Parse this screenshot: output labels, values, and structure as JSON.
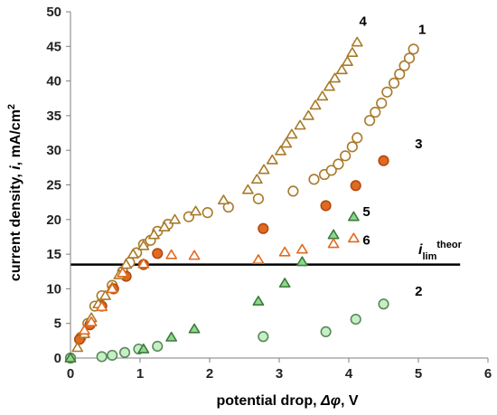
{
  "chart_data": {
    "type": "scatter",
    "xlabel_prefix": "potential drop, ",
    "xlabel_symbol": "Δφ",
    "xlabel_suffix": ", V",
    "ylabel_prefix": "current density, ",
    "ylabel_symbol": "i",
    "ylabel_suffix": ", mA/cm",
    "ylabel_sup": "2",
    "xlim": [
      0,
      6
    ],
    "ylim": [
      0,
      50
    ],
    "xticks": [
      "0",
      "1",
      "2",
      "3",
      "4",
      "5",
      "6"
    ],
    "yticks": [
      "0",
      "5",
      "10",
      "15",
      "20",
      "25",
      "30",
      "35",
      "40",
      "45",
      "50"
    ],
    "grid": false,
    "limit_line": {
      "y": 13.5,
      "x_range": [
        0,
        5.6
      ],
      "label_i": "i",
      "label_sub": "lim",
      "label_sup": "theor"
    },
    "series": [
      {
        "label": "1",
        "marker": "circle",
        "fill": "#ffffff",
        "stroke": "#a87a2a",
        "label_at": [
          5.0,
          46.8
        ],
        "points": [
          [
            0.0,
            0.0
          ],
          [
            0.15,
            3.0
          ],
          [
            0.25,
            5.0
          ],
          [
            0.35,
            7.5
          ],
          [
            0.45,
            9.0
          ],
          [
            0.6,
            10.5
          ],
          [
            0.75,
            12.5
          ],
          [
            0.85,
            13.8
          ],
          [
            0.95,
            15.2
          ],
          [
            1.05,
            16.4
          ],
          [
            1.15,
            17.0
          ],
          [
            1.25,
            18.3
          ],
          [
            1.4,
            19.3
          ],
          [
            1.7,
            20.4
          ],
          [
            1.97,
            21.0
          ],
          [
            2.27,
            21.8
          ],
          [
            2.7,
            23.0
          ],
          [
            3.2,
            24.1
          ],
          [
            3.5,
            25.8
          ],
          [
            3.65,
            26.5
          ],
          [
            3.75,
            27.1
          ],
          [
            3.85,
            28.0
          ],
          [
            3.95,
            29.2
          ],
          [
            4.05,
            30.5
          ],
          [
            4.12,
            31.8
          ],
          [
            4.3,
            34.3
          ],
          [
            4.38,
            35.5
          ],
          [
            4.47,
            36.8
          ],
          [
            4.55,
            38.4
          ],
          [
            4.65,
            39.7
          ],
          [
            4.73,
            41.0
          ],
          [
            4.8,
            42.2
          ],
          [
            4.87,
            43.3
          ],
          [
            4.93,
            44.6
          ]
        ]
      },
      {
        "label": "2",
        "marker": "circle",
        "fill": "#c6efc6",
        "stroke": "#5a8a5a",
        "label_at": [
          4.95,
          9.0
        ],
        "points": [
          [
            0.0,
            0.0
          ],
          [
            0.45,
            0.2
          ],
          [
            0.6,
            0.4
          ],
          [
            0.78,
            0.8
          ],
          [
            0.98,
            1.3
          ],
          [
            1.25,
            1.7
          ],
          [
            2.77,
            3.1
          ],
          [
            3.67,
            3.8
          ],
          [
            4.1,
            5.6
          ],
          [
            4.5,
            7.8
          ]
        ]
      },
      {
        "label": "3",
        "marker": "circle",
        "fill": "#e06a20",
        "stroke": "#b04a10",
        "label_at": [
          4.95,
          30.3
        ],
        "points": [
          [
            0.13,
            2.7
          ],
          [
            0.28,
            4.8
          ],
          [
            0.45,
            7.5
          ],
          [
            0.62,
            10.0
          ],
          [
            0.8,
            11.8
          ],
          [
            1.05,
            13.5
          ],
          [
            1.25,
            15.1
          ],
          [
            2.77,
            18.7
          ],
          [
            3.67,
            22.0
          ],
          [
            4.1,
            24.9
          ],
          [
            4.5,
            28.5
          ]
        ]
      },
      {
        "label": "4",
        "marker": "triangle",
        "fill": "#ffffff",
        "stroke": "#a87a2a",
        "label_at": [
          4.15,
          48.0
        ],
        "points": [
          [
            0.0,
            0.0
          ],
          [
            0.1,
            1.5
          ],
          [
            0.2,
            3.5
          ],
          [
            0.3,
            5.8
          ],
          [
            0.4,
            7.8
          ],
          [
            0.5,
            9.0
          ],
          [
            0.6,
            10.2
          ],
          [
            0.7,
            12.0
          ],
          [
            0.8,
            13.5
          ],
          [
            0.9,
            15.0
          ],
          [
            1.05,
            16.2
          ],
          [
            1.2,
            17.8
          ],
          [
            1.35,
            18.9
          ],
          [
            1.5,
            20.0
          ],
          [
            1.8,
            21.2
          ],
          [
            2.2,
            22.8
          ],
          [
            2.55,
            24.3
          ],
          [
            2.68,
            25.8
          ],
          [
            2.78,
            27.2
          ],
          [
            2.9,
            28.6
          ],
          [
            3.02,
            29.9
          ],
          [
            3.1,
            31.0
          ],
          [
            3.18,
            32.3
          ],
          [
            3.3,
            33.6
          ],
          [
            3.42,
            35.0
          ],
          [
            3.52,
            36.5
          ],
          [
            3.62,
            37.8
          ],
          [
            3.72,
            39.2
          ],
          [
            3.8,
            40.4
          ],
          [
            3.9,
            41.6
          ],
          [
            3.98,
            42.8
          ],
          [
            4.05,
            44.1
          ],
          [
            4.12,
            45.6
          ]
        ]
      },
      {
        "label": "5",
        "marker": "triangle",
        "fill": "#8ed88e",
        "stroke": "#3d7a3d",
        "label_at": [
          4.2,
          20.5
        ],
        "points": [
          [
            0.0,
            0.0
          ],
          [
            1.05,
            1.3
          ],
          [
            1.45,
            3.0
          ],
          [
            1.78,
            4.2
          ],
          [
            2.7,
            8.2
          ],
          [
            3.08,
            10.8
          ],
          [
            3.33,
            13.9
          ],
          [
            3.78,
            17.8
          ],
          [
            4.07,
            20.4
          ]
        ]
      },
      {
        "label": "6",
        "marker": "triangle",
        "fill": "#ffffff",
        "stroke": "#e06a20",
        "label_at": [
          4.2,
          16.4
        ],
        "points": [
          [
            0.2,
            4.0
          ],
          [
            0.3,
            5.2
          ],
          [
            0.45,
            7.4
          ],
          [
            0.6,
            10.0
          ],
          [
            0.75,
            12.3
          ],
          [
            1.05,
            13.6
          ],
          [
            1.45,
            14.9
          ],
          [
            1.78,
            14.8
          ],
          [
            2.7,
            14.2
          ],
          [
            3.08,
            15.3
          ],
          [
            3.33,
            15.7
          ],
          [
            3.78,
            16.5
          ],
          [
            4.07,
            17.3
          ]
        ]
      }
    ]
  }
}
